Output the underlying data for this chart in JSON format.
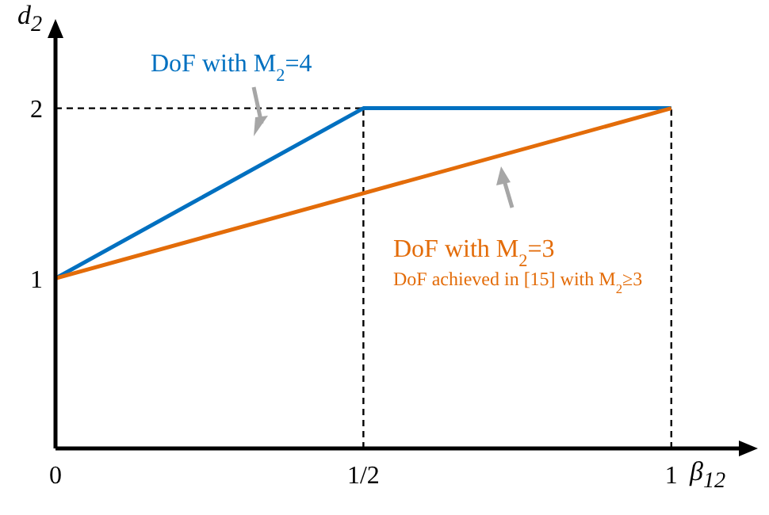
{
  "chart_data": {
    "type": "line",
    "xlabel": "β$_{12}$",
    "ylabel": "d$_{2}$",
    "xlim": [
      0,
      1.12
    ],
    "ylim": [
      0,
      2.45
    ],
    "xticks": [
      0,
      {
        "value": 0.5,
        "label": "1/2"
      },
      1
    ],
    "yticks": [
      1,
      2
    ],
    "series": [
      {
        "name": "DoF with M$_{2}$=4",
        "color": "#0070c0",
        "x": [
          0,
          0.5,
          1
        ],
        "values": [
          1,
          2,
          2
        ]
      },
      {
        "name": "DoF with M$_{2}$=3",
        "color": "#e36c09",
        "x": [
          0,
          1
        ],
        "values": [
          1,
          2
        ]
      }
    ],
    "ref_lines": [
      {
        "axis": "y",
        "value": 2,
        "color": "#000000",
        "line_style": "dashed"
      },
      {
        "axis": "x",
        "value": 0.5,
        "color": "#000000",
        "line_style": "dashed"
      },
      {
        "axis": "x",
        "value": 1,
        "color": "#000000",
        "line_style": "dashed"
      }
    ],
    "annotations": [
      "DoF achieved in [15] with M$_{2}$≥3"
    ],
    "marker": "none"
  }
}
